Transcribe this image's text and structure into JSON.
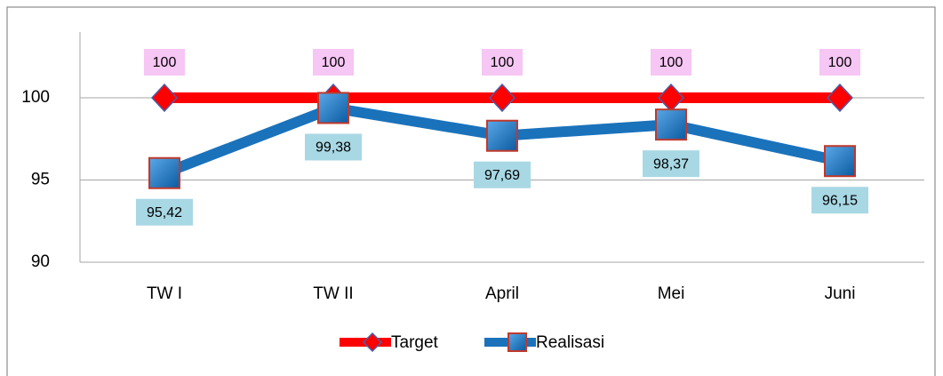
{
  "chart_data": {
    "type": "line",
    "categories": [
      "TW I",
      "TW II",
      "April",
      "Mei",
      "Juni"
    ],
    "series": [
      {
        "name": "Target",
        "color": "#ff0000",
        "values": [
          100,
          100,
          100,
          100,
          100
        ]
      },
      {
        "name": "Realisasi",
        "color": "#1a72bb",
        "values": [
          95.42,
          99.38,
          97.69,
          98.37,
          96.15
        ],
        "value_labels": [
          "95,42",
          "99,38",
          "97,69",
          "98,37",
          "96,15"
        ]
      }
    ],
    "ylim": [
      90,
      104
    ],
    "yticks": [
      90,
      95,
      100
    ],
    "grid": true,
    "legend": "bottom"
  }
}
